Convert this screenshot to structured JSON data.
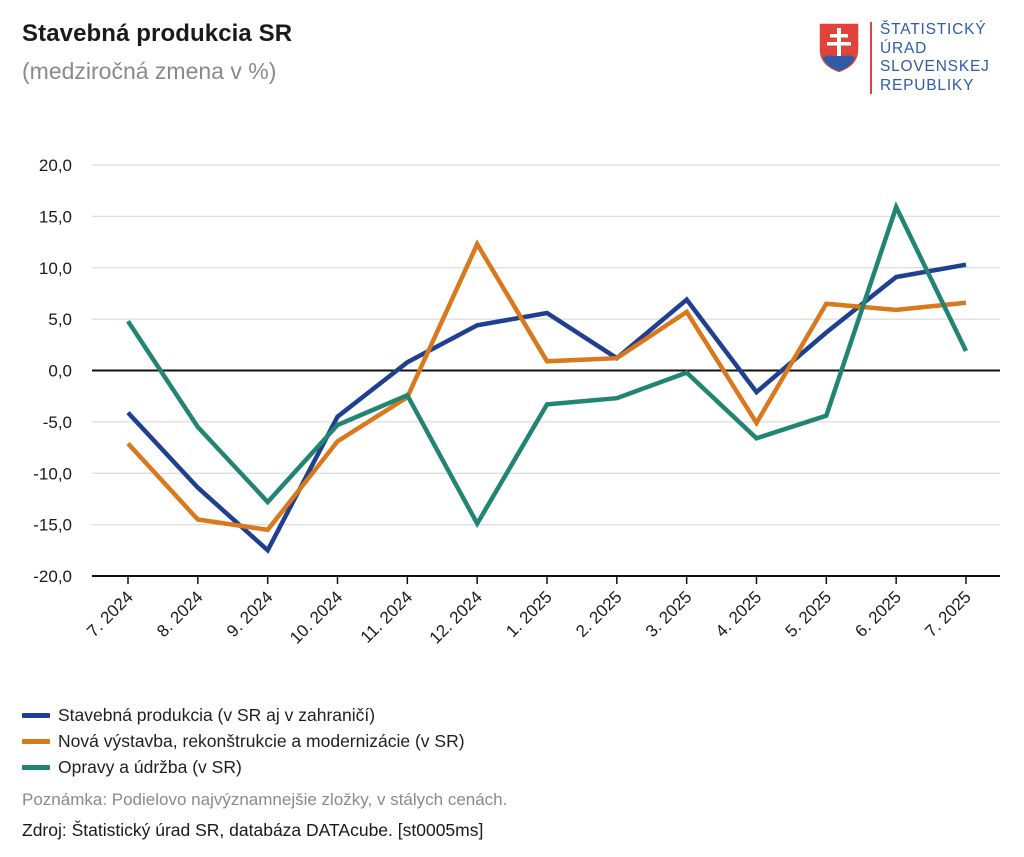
{
  "header": {
    "title": "Stavebná produkcia SR",
    "subtitle": "(medziročná zmena v %)"
  },
  "logo": {
    "line1": "ŠTATISTICKÝ",
    "line2": "ÚRAD",
    "line3": "SLOVENSKEJ",
    "line4": "REPUBLIKY"
  },
  "chart_data": {
    "type": "line",
    "title": "Stavebná produkcia SR",
    "subtitle": "(medziročná zmena v %)",
    "xlabel": "",
    "ylabel": "",
    "ylim": [
      -20,
      20
    ],
    "yticks": [
      20,
      15,
      10,
      5,
      0,
      -5,
      -10,
      -15,
      -20
    ],
    "ytick_labels": [
      "20,0",
      "15,0",
      "10,0",
      "5,0",
      "0,0",
      "-5,0",
      "-10,0",
      "-15,0",
      "-20,0"
    ],
    "grid": true,
    "categories": [
      "7. 2024",
      "8. 2024",
      "9. 2024",
      "10. 2024",
      "11. 2024",
      "12. 2024",
      "1. 2025",
      "2. 2025",
      "3. 2025",
      "4. 2025",
      "5. 2025",
      "6. 2025",
      "7. 2025"
    ],
    "series": [
      {
        "name": "Stavebná produkcia (v SR aj v zahraničí)",
        "color": "#1f3f8f",
        "values": [
          -4.1,
          -11.4,
          -17.5,
          -4.5,
          0.8,
          4.4,
          5.6,
          1.2,
          6.9,
          -2.1,
          3.7,
          9.1,
          10.3
        ]
      },
      {
        "name": "Nová výstavba, rekonštrukcie a modernizácie (v SR)",
        "color": "#d9781c",
        "values": [
          -7.1,
          -14.5,
          -15.5,
          -6.9,
          -2.6,
          12.3,
          0.9,
          1.2,
          5.7,
          -5.1,
          6.5,
          5.9,
          6.6
        ]
      },
      {
        "name": "Opravy a údržba (v SR)",
        "color": "#228573",
        "values": [
          4.8,
          -5.5,
          -12.8,
          -5.3,
          -2.4,
          -14.9,
          -3.3,
          -2.7,
          -0.2,
          -6.6,
          -4.4,
          15.9,
          1.9
        ]
      }
    ]
  },
  "legend": {
    "items": [
      {
        "label": "Stavebná produkcia (v SR aj v zahraničí)",
        "color": "#1f3f8f"
      },
      {
        "label": "Nová výstavba, rekonštrukcie a modernizácie (v SR)",
        "color": "#d9781c"
      },
      {
        "label": "Opravy a údržba (v SR)",
        "color": "#228573"
      }
    ]
  },
  "footer": {
    "note": "Poznámka: Podielovo najvýznamnejšie zložky, v stálych cenách.",
    "source": "Zdroj: Štatistický úrad SR, databáza DATAcube. [st0005ms]"
  }
}
